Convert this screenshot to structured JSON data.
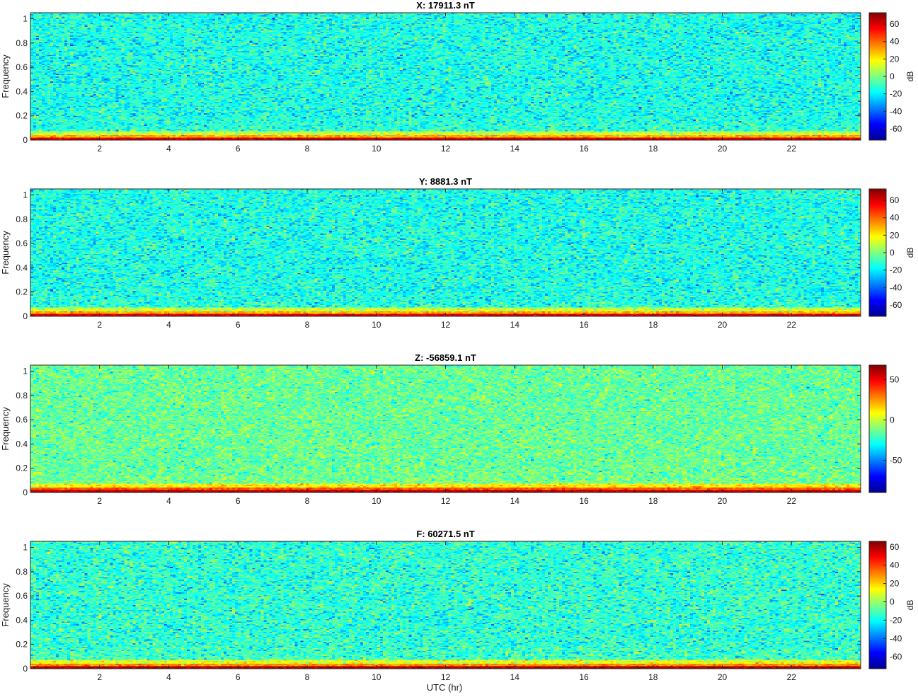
{
  "figure": {
    "xlabel": "UTC (hr)",
    "colormap": "jet"
  },
  "chart_data": [
    {
      "type": "heatmap",
      "title": "X: 17911.3 nT",
      "ylabel": "Frequency",
      "xlabel": "",
      "xlim": [
        0,
        24
      ],
      "ylim": [
        0,
        1.05
      ],
      "xticks": [
        2,
        4,
        6,
        8,
        10,
        12,
        14,
        16,
        18,
        20,
        22
      ],
      "yticks": [
        0,
        0.2,
        0.4,
        0.6,
        0.8,
        1
      ],
      "colorbar": {
        "label": "dB",
        "range": [
          -73,
          73
        ],
        "ticks": [
          60,
          40,
          20,
          0,
          -20,
          -40,
          -60
        ]
      },
      "background_db": -15,
      "band_db": [
        10,
        30
      ],
      "dc_db": 60
    },
    {
      "type": "heatmap",
      "title": "Y: 8881.3 nT",
      "ylabel": "Frequency",
      "xlabel": "",
      "xlim": [
        0,
        24
      ],
      "ylim": [
        0,
        1.05
      ],
      "xticks": [
        2,
        4,
        6,
        8,
        10,
        12,
        14,
        16,
        18,
        20,
        22
      ],
      "yticks": [
        0,
        0.2,
        0.4,
        0.6,
        0.8,
        1
      ],
      "colorbar": {
        "label": "dB",
        "range": [
          -73,
          73
        ],
        "ticks": [
          60,
          40,
          20,
          0,
          -20,
          -40,
          -60
        ]
      },
      "background_db": -15,
      "band_db": [
        10,
        30
      ],
      "dc_db": 60
    },
    {
      "type": "heatmap",
      "title": "Z: -56859.1 nT",
      "ylabel": "Frequency",
      "xlabel": "",
      "xlim": [
        0,
        24
      ],
      "ylim": [
        0,
        1.05
      ],
      "xticks": [
        2,
        4,
        6,
        8,
        10,
        12,
        14,
        16,
        18,
        20,
        22
      ],
      "yticks": [
        0,
        0.2,
        0.4,
        0.6,
        0.8,
        1
      ],
      "colorbar": {
        "label": "",
        "range": [
          -90,
          68
        ],
        "ticks": [
          50,
          0,
          -50
        ]
      },
      "background_db": -15,
      "band_db": [
        10,
        35
      ],
      "dc_db": 60
    },
    {
      "type": "heatmap",
      "title": "F: 60271.5 nT",
      "ylabel": "Frequency",
      "xlabel": "UTC (hr)",
      "xlim": [
        0,
        24
      ],
      "ylim": [
        0,
        1.05
      ],
      "xticks": [
        2,
        4,
        6,
        8,
        10,
        12,
        14,
        16,
        18,
        20,
        22
      ],
      "yticks": [
        0,
        0.2,
        0.4,
        0.6,
        0.8,
        1
      ],
      "colorbar": {
        "label": "dB",
        "range": [
          -73,
          66
        ],
        "ticks": [
          60,
          40,
          20,
          0,
          -20,
          -40,
          -60
        ]
      },
      "background_db": -15,
      "band_db": [
        10,
        30
      ],
      "dc_db": 60
    }
  ]
}
